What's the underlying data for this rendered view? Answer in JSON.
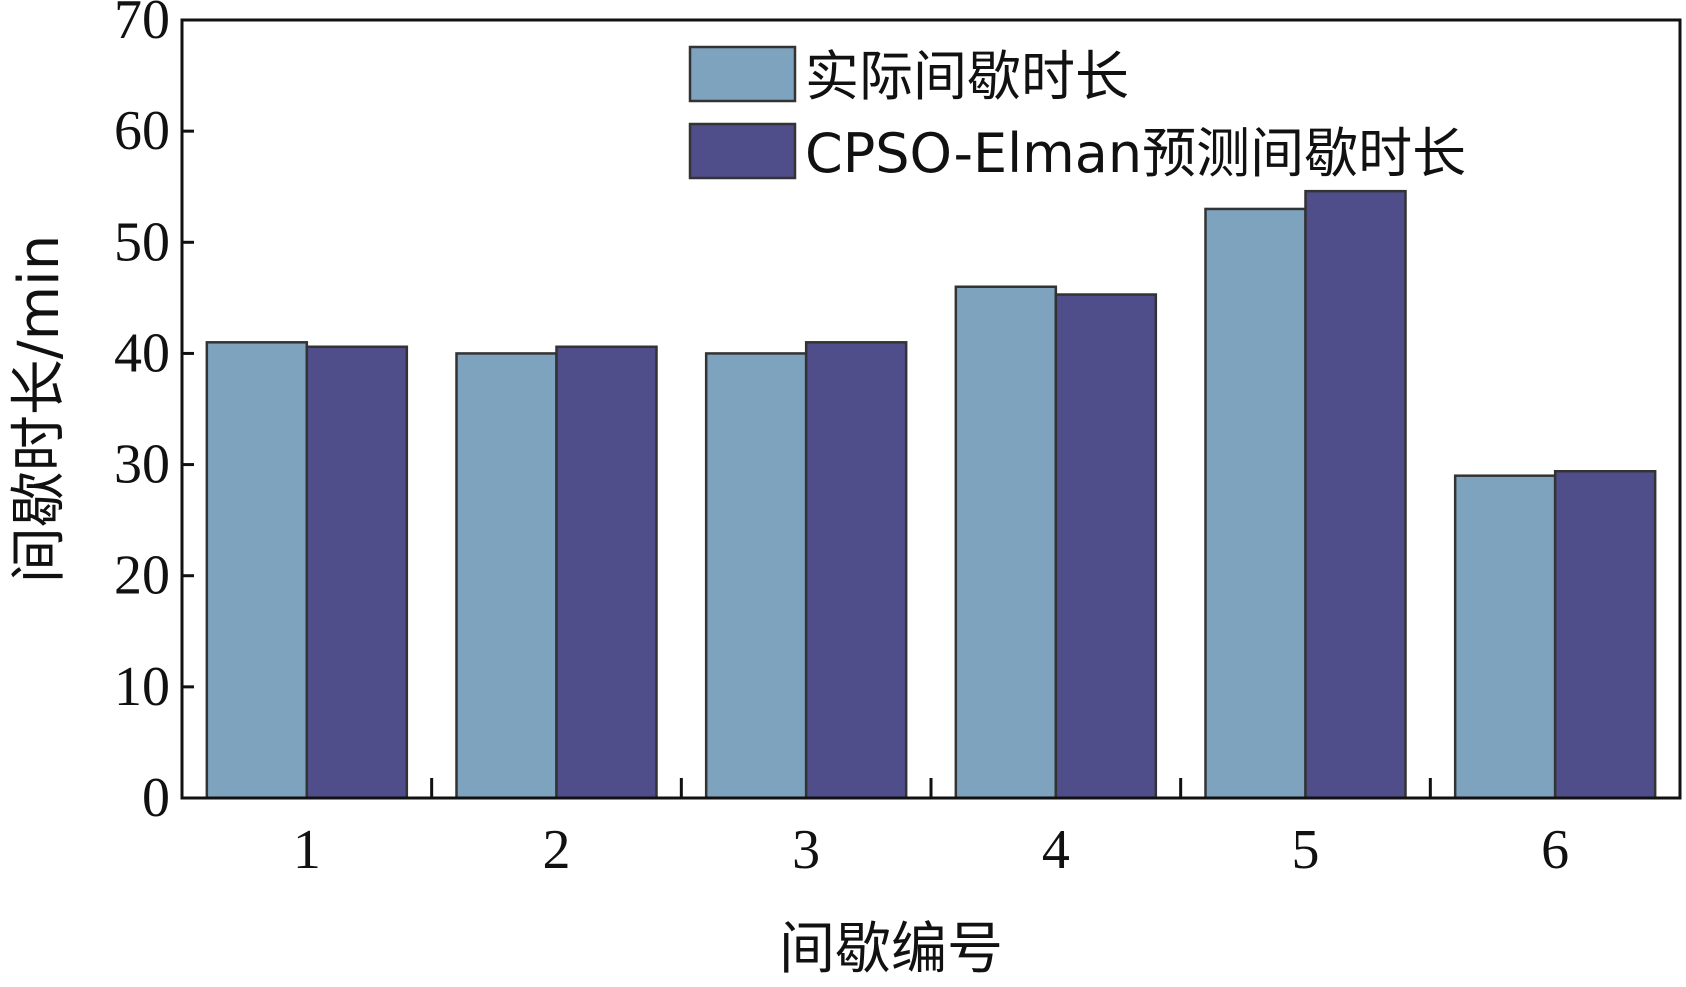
{
  "chart_data": {
    "type": "bar",
    "title": "",
    "xlabel": "间歇编号",
    "ylabel": "间歇时长/min",
    "categories": [
      "1",
      "2",
      "3",
      "4",
      "5",
      "6"
    ],
    "series": [
      {
        "name": "实际间歇时长",
        "color": "#7ea3bf",
        "values": [
          41,
          40,
          40,
          46,
          53,
          29
        ]
      },
      {
        "name": "CPSO-Elman预测间歇时长",
        "color": "#504d8b",
        "values": [
          40.6,
          40.6,
          41,
          45.3,
          54.6,
          29.4
        ]
      }
    ],
    "ylim": [
      0,
      70
    ],
    "yticks": [
      0,
      10,
      20,
      30,
      40,
      50,
      60,
      70
    ],
    "grid": false,
    "legend_position": "top-right"
  }
}
